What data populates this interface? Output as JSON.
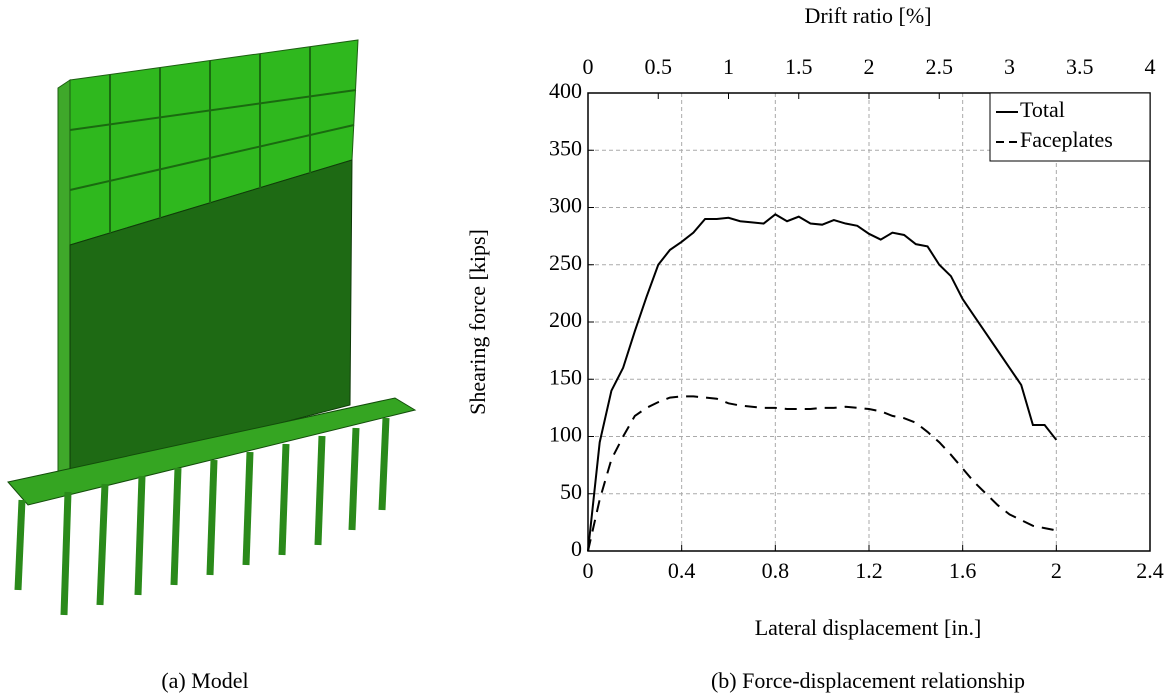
{
  "captions": {
    "left": "(a) Model",
    "right": "(b) Force-displacement relationship"
  },
  "chart_data": {
    "type": "line",
    "xlabel": "Lateral displacement [in.]",
    "ylabel": "Shearing force [kips]",
    "x2label": "Drift ratio [%]",
    "x": [
      0,
      0.05,
      0.1,
      0.15,
      0.2,
      0.25,
      0.3,
      0.35,
      0.4,
      0.45,
      0.5,
      0.55,
      0.6,
      0.65,
      0.7,
      0.75,
      0.8,
      0.85,
      0.9,
      0.95,
      1.0,
      1.05,
      1.1,
      1.15,
      1.2,
      1.25,
      1.3,
      1.35,
      1.4,
      1.45,
      1.5,
      1.55,
      1.6,
      1.65,
      1.7,
      1.75,
      1.8,
      1.85,
      1.9,
      1.95,
      2.0
    ],
    "series": [
      {
        "name": "Total",
        "color": "#000000",
        "line_style": "solid",
        "values": [
          0,
          95,
          140,
          160,
          192,
          222,
          250,
          263,
          270,
          278,
          290,
          290,
          291,
          288,
          287,
          286,
          294,
          288,
          292,
          286,
          285,
          289,
          286,
          284,
          277,
          272,
          278,
          276,
          268,
          266,
          250,
          240,
          220,
          205,
          190,
          175,
          160,
          145,
          110,
          110,
          97
        ]
      },
      {
        "name": "Faceplates",
        "color": "#000000",
        "line_style": "dashed",
        "values": [
          0,
          45,
          80,
          100,
          118,
          125,
          130,
          134,
          135,
          135,
          134,
          133,
          129,
          127,
          126,
          125,
          125,
          124,
          124,
          124,
          125,
          125,
          126,
          125,
          124,
          122,
          118,
          116,
          112,
          104,
          95,
          84,
          72,
          60,
          50,
          40,
          32,
          27,
          22,
          20,
          18
        ]
      }
    ],
    "xlim": [
      0,
      2.4
    ],
    "xticks": [
      0,
      0.4,
      0.8,
      1.2,
      1.6,
      2,
      2.4
    ],
    "x2lim": [
      0,
      4
    ],
    "x2ticks": [
      0,
      0.5,
      1,
      1.5,
      2,
      2.5,
      3,
      3.5,
      4
    ],
    "ylim": [
      0,
      400
    ],
    "yticks": [
      0,
      50,
      100,
      150,
      200,
      250,
      300,
      350,
      400
    ],
    "grid": true,
    "legend": "upper right"
  }
}
